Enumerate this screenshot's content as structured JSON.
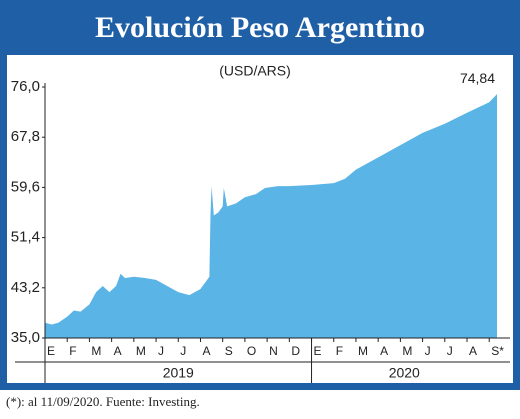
{
  "chart_data": {
    "type": "area",
    "title": "Evolución Peso Argentino",
    "subtitle": "(USD/ARS)",
    "footnote": "(*): al 11/09/2020. Fuente: Investing.",
    "x": [
      0,
      0.3,
      0.6,
      1.0,
      1.3,
      1.6,
      2.0,
      2.3,
      2.6,
      2.9,
      3.2,
      3.4,
      3.6,
      4.0,
      4.5,
      5.0,
      5.5,
      6.0,
      6.5,
      7.0,
      7.3,
      7.4,
      7.45,
      7.5,
      7.6,
      7.8,
      8.0,
      8.05,
      8.2,
      8.6,
      9.0,
      9.5,
      9.9,
      10.5,
      11,
      12,
      13,
      13.5,
      14,
      15,
      16,
      17,
      18,
      19,
      20,
      20.35
    ],
    "series": [
      {
        "color": "#5ab4e5",
        "values": [
          37.5,
          37.2,
          37.5,
          38.5,
          39.5,
          39.3,
          40.5,
          42.5,
          43.5,
          42.5,
          43.5,
          45.5,
          44.8,
          45.0,
          44.8,
          44.5,
          43.5,
          42.5,
          42.0,
          43.0,
          44.5,
          45.0,
          55.0,
          59.8,
          55.0,
          55.5,
          56.5,
          59.5,
          56.5,
          57.0,
          58.0,
          58.5,
          59.5,
          59.8,
          59.8,
          60.0,
          60.3,
          61.0,
          62.5,
          64.5,
          66.5,
          68.5,
          70.0,
          71.8,
          73.5,
          74.84
        ],
        "value_labels": [
          null,
          null,
          null,
          null,
          null,
          null,
          null,
          null,
          null,
          null,
          null,
          null,
          null,
          null,
          null,
          null,
          null,
          null,
          null,
          null,
          null,
          null,
          null,
          null,
          null,
          null,
          null,
          null,
          null,
          null,
          null,
          null,
          null,
          null,
          null,
          null,
          null,
          null,
          null,
          null,
          null,
          null,
          null,
          null,
          null,
          "74,84"
        ]
      }
    ],
    "xlim": [
      0,
      20.35
    ],
    "xticks": [
      {
        "value": 0,
        "label": "E"
      },
      {
        "value": 1,
        "label": "F"
      },
      {
        "value": 2,
        "label": "M"
      },
      {
        "value": 3,
        "label": "A"
      },
      {
        "value": 4,
        "label": "M"
      },
      {
        "value": 5,
        "label": "J"
      },
      {
        "value": 6,
        "label": "J"
      },
      {
        "value": 7,
        "label": "A"
      },
      {
        "value": 8,
        "label": "S"
      },
      {
        "value": 9,
        "label": "O"
      },
      {
        "value": 10,
        "label": "N"
      },
      {
        "value": 11,
        "label": "D"
      },
      {
        "value": 12,
        "label": "E"
      },
      {
        "value": 13,
        "label": "F"
      },
      {
        "value": 14,
        "label": "M"
      },
      {
        "value": 15,
        "label": "A"
      },
      {
        "value": 16,
        "label": "M"
      },
      {
        "value": 17,
        "label": "J"
      },
      {
        "value": 18,
        "label": "J"
      },
      {
        "value": 19,
        "label": "A"
      },
      {
        "value": 20,
        "label": "S*"
      }
    ],
    "year_groups": [
      {
        "label": "2019",
        "start": 0,
        "end": 12
      },
      {
        "label": "2020",
        "start": 12,
        "end": 20.35
      }
    ],
    "ylim": [
      35.0,
      76.0
    ],
    "yticks": [
      {
        "value": 35.0,
        "label": "35,0"
      },
      {
        "value": 43.2,
        "label": "43,2"
      },
      {
        "value": 51.4,
        "label": "51,4"
      },
      {
        "value": 59.6,
        "label": "59,6"
      },
      {
        "value": 67.8,
        "label": "67,8"
      },
      {
        "value": 76.0,
        "label": "76,0"
      }
    ],
    "frame_color": "#1f5fa6"
  }
}
